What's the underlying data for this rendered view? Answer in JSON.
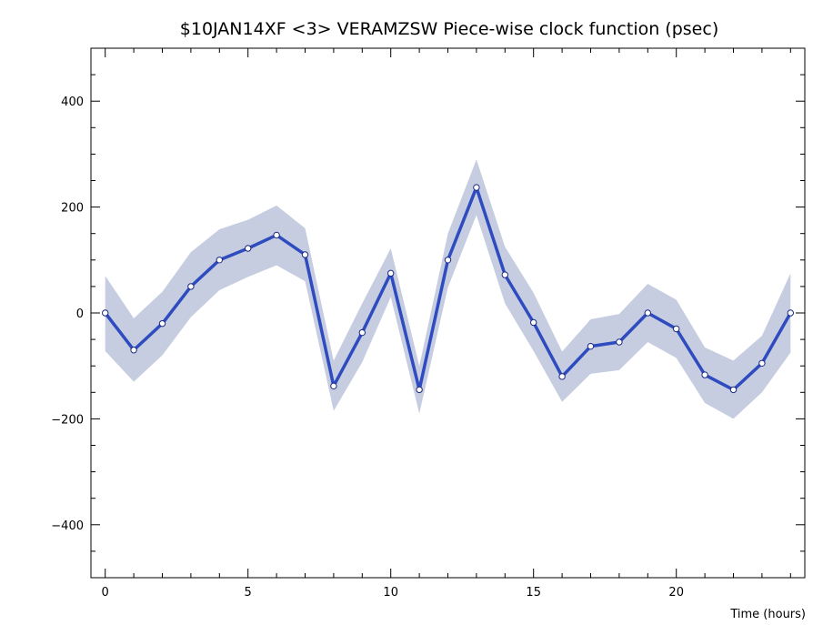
{
  "chart_data": {
    "type": "line",
    "title": "$10JAN14XF <3>  VERAMZSW  Piece-wise clock function (psec)",
    "xlabel": "Time (hours)",
    "ylabel": "",
    "xlim": [
      -0.5,
      24.5
    ],
    "ylim": [
      -500,
      500
    ],
    "x_ticks": [
      0,
      5,
      10,
      15,
      20
    ],
    "x_tick_labels": [
      "0",
      "5",
      "10",
      "15",
      "20"
    ],
    "y_ticks": [
      400,
      200,
      0,
      -200,
      -400
    ],
    "y_tick_labels": [
      "400",
      "200",
      "0",
      "−200",
      "−400"
    ],
    "colors": {
      "line": "#2e4bbf",
      "band": "#c7cde0",
      "axis": "#000000",
      "marker_fill": "#ffffff"
    },
    "series": [
      {
        "name": "clock function",
        "x": [
          0,
          1,
          2,
          3,
          4,
          5,
          6,
          7,
          8,
          9,
          10,
          11,
          12,
          13,
          14,
          15,
          16,
          17,
          18,
          19,
          20,
          21,
          22,
          23,
          24
        ],
        "values": [
          0,
          -70,
          -20,
          50,
          100,
          122,
          147,
          110,
          -138,
          -37,
          75,
          -145,
          100,
          237,
          72,
          -18,
          -120,
          -63,
          -55,
          0,
          -30,
          -117,
          -145,
          -95,
          0
        ],
        "upper": [
          70,
          -10,
          40,
          115,
          158,
          176,
          203,
          160,
          -90,
          18,
          122,
          -100,
          150,
          290,
          125,
          38,
          -73,
          -12,
          -2,
          55,
          25,
          -65,
          -90,
          -43,
          75
        ],
        "lower": [
          -72,
          -130,
          -80,
          -8,
          43,
          68,
          90,
          60,
          -185,
          -93,
          30,
          -190,
          48,
          185,
          18,
          -72,
          -168,
          -115,
          -108,
          -55,
          -85,
          -170,
          -200,
          -150,
          -75
        ]
      }
    ]
  }
}
